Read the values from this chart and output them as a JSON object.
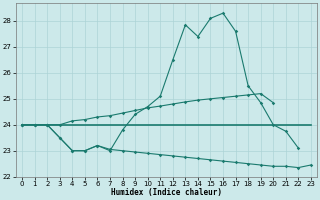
{
  "xlabel": "Humidex (Indice chaleur)",
  "background_color": "#cce9ea",
  "grid_color": "#add4d6",
  "line_color": "#1a7a6e",
  "xlim": [
    -0.5,
    23.5
  ],
  "ylim": [
    22.0,
    28.7
  ],
  "yticks": [
    22,
    23,
    24,
    25,
    26,
    27,
    28
  ],
  "xticks": [
    0,
    1,
    2,
    3,
    4,
    5,
    6,
    7,
    8,
    9,
    10,
    11,
    12,
    13,
    14,
    15,
    16,
    17,
    18,
    19,
    20,
    21,
    22,
    23
  ],
  "line1_x": [
    0,
    1,
    2,
    3,
    4,
    5,
    6,
    7,
    8,
    9,
    10,
    11,
    12,
    13,
    14,
    15,
    16,
    17,
    18,
    19,
    20,
    21,
    22
  ],
  "line1_y": [
    24.0,
    24.0,
    24.0,
    23.5,
    23.0,
    23.0,
    23.2,
    23.0,
    23.8,
    24.4,
    24.7,
    25.1,
    26.5,
    27.85,
    27.4,
    28.1,
    28.3,
    27.6,
    25.5,
    24.85,
    24.0,
    23.75,
    23.1
  ],
  "line2_x": [
    0,
    1,
    2,
    3,
    4,
    5,
    6,
    7,
    8,
    9,
    10,
    11,
    12,
    13,
    14,
    15,
    16,
    17,
    18,
    19,
    20,
    21,
    22,
    23
  ],
  "line2_y": [
    24.0,
    24.0,
    24.0,
    24.0,
    24.0,
    24.0,
    24.0,
    24.0,
    24.0,
    24.0,
    24.0,
    24.0,
    24.0,
    24.0,
    24.0,
    24.0,
    24.0,
    24.0,
    24.0,
    24.0,
    24.0,
    24.0,
    24.0,
    24.0
  ],
  "line3_x": [
    0,
    1,
    2,
    3,
    4,
    5,
    6,
    7,
    8,
    9,
    10,
    11,
    12,
    13,
    14,
    15,
    16,
    17,
    18,
    19,
    20
  ],
  "line3_y": [
    24.0,
    24.0,
    24.0,
    24.0,
    24.15,
    24.2,
    24.3,
    24.35,
    24.45,
    24.55,
    24.65,
    24.72,
    24.8,
    24.88,
    24.95,
    25.0,
    25.05,
    25.1,
    25.15,
    25.2,
    24.85
  ],
  "line4_x": [
    0,
    1,
    2,
    3,
    4,
    5,
    6,
    7,
    8,
    9,
    10,
    11,
    12,
    13,
    14,
    15,
    16,
    17,
    18,
    19,
    20,
    21,
    22,
    23
  ],
  "line4_y": [
    24.0,
    24.0,
    24.0,
    23.5,
    23.0,
    23.0,
    23.2,
    23.05,
    23.0,
    22.95,
    22.9,
    22.85,
    22.8,
    22.75,
    22.7,
    22.65,
    22.6,
    22.55,
    22.5,
    22.45,
    22.4,
    22.4,
    22.35,
    22.45
  ]
}
